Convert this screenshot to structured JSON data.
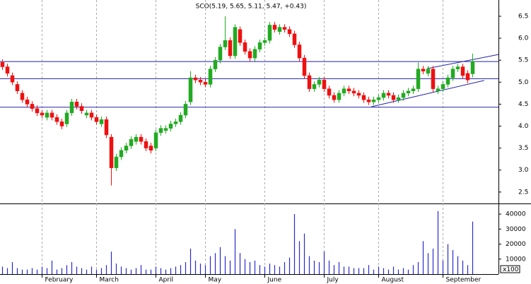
{
  "chart_data": [
    {
      "type": "candlestick",
      "title": "SCO(5.19, 5.65, 5.11, 5.47, +0.43)",
      "up_color": "#22aa22",
      "down_color": "#ee1111",
      "xlim": [
        -0.43,
        100.29
      ],
      "xticks": [
        {
          "value": 8,
          "label": "February"
        },
        {
          "value": 19,
          "label": "March"
        },
        {
          "value": 31,
          "label": "April"
        },
        {
          "value": 41,
          "label": "May"
        },
        {
          "value": 53,
          "label": "June"
        },
        {
          "value": 65,
          "label": "July"
        },
        {
          "value": 76,
          "label": "August"
        },
        {
          "value": 89,
          "label": "September"
        }
      ],
      "ylim": [
        2.24,
        6.87
      ],
      "yticks": [
        2.5,
        {
          "value": 3,
          "label": "3.0"
        },
        3.5,
        {
          "value": 4,
          "label": "4.0"
        },
        4.5,
        {
          "value": 5,
          "label": "5.0"
        },
        5.5,
        {
          "value": 6,
          "label": "6.0"
        },
        6.5
      ],
      "hlines": [
        5.47,
        5.08,
        4.43
      ],
      "line_color": "#2222aa",
      "trendlines": [
        {
          "x": [
            85.9,
            100.3
          ],
          "y": [
            5.31,
            5.63
          ]
        },
        {
          "x": [
            74.6,
            97.4
          ],
          "y": [
            4.44,
            5.04
          ]
        }
      ],
      "open": [
        5.45,
        5.35,
        5.15,
        4.95,
        4.75,
        4.6,
        4.5,
        4.4,
        4.3,
        4.2,
        4.3,
        4.2,
        4.1,
        4.05,
        4.3,
        4.55,
        4.45,
        4.25,
        4.3,
        4.2,
        4.05,
        4.15,
        3.75,
        3.05,
        3.3,
        3.45,
        3.55,
        3.65,
        3.75,
        3.65,
        3.55,
        3.5,
        3.85,
        3.9,
        3.95,
        4.05,
        4.1,
        4.25,
        4.55,
        5.1,
        5.05,
        5.0,
        4.95,
        5.3,
        5.5,
        5.8,
        5.95,
        5.6,
        6.2,
        5.9,
        5.7,
        5.55,
        5.75,
        5.9,
        5.95,
        6.3,
        6.15,
        6.25,
        6.2,
        6.1,
        5.85,
        5.55,
        5.15,
        4.85,
        4.95,
        5.05,
        4.85,
        4.7,
        4.6,
        4.75,
        4.85,
        4.8,
        4.75,
        4.7,
        4.6,
        4.55,
        4.6,
        4.65,
        4.75,
        4.7,
        4.6,
        4.65,
        4.75,
        4.8,
        4.85,
        5.3,
        5.2,
        5.3,
        4.8,
        4.85,
        4.95,
        5.1,
        5.3,
        5.35,
        5.2,
        5.19
      ],
      "high": [
        5.52,
        5.42,
        5.22,
        5.02,
        4.82,
        4.67,
        4.57,
        4.47,
        4.37,
        4.37,
        4.37,
        4.27,
        4.17,
        4.37,
        4.62,
        4.62,
        4.52,
        4.37,
        4.37,
        4.27,
        4.22,
        4.22,
        3.82,
        3.37,
        3.52,
        3.62,
        3.77,
        3.82,
        3.82,
        3.72,
        3.62,
        3.92,
        4.02,
        4.02,
        4.12,
        4.17,
        4.32,
        4.57,
        5.25,
        5.17,
        5.12,
        5.07,
        5.37,
        5.57,
        5.87,
        6.5,
        6.02,
        6.32,
        6.27,
        5.97,
        5.77,
        5.82,
        5.97,
        6.02,
        6.37,
        6.37,
        6.32,
        6.32,
        6.27,
        6.17,
        5.92,
        5.62,
        5.22,
        5.02,
        5.12,
        5.12,
        4.92,
        4.77,
        4.82,
        4.92,
        4.92,
        4.87,
        4.82,
        4.77,
        4.67,
        4.67,
        4.72,
        4.82,
        4.82,
        4.77,
        4.72,
        4.82,
        4.87,
        4.92,
        5.45,
        5.37,
        5.37,
        5.37,
        4.92,
        5.02,
        5.17,
        5.37,
        5.42,
        5.42,
        5.27,
        5.65
      ],
      "low": [
        5.28,
        5.13,
        4.93,
        4.73,
        4.53,
        4.43,
        4.33,
        4.23,
        4.18,
        4.13,
        4.13,
        4.03,
        3.93,
        3.98,
        4.23,
        4.38,
        4.28,
        4.18,
        4.13,
        4.03,
        3.98,
        3.73,
        2.65,
        2.98,
        3.23,
        3.38,
        3.48,
        3.58,
        3.58,
        3.43,
        3.38,
        3.43,
        3.78,
        3.83,
        3.88,
        3.98,
        4.03,
        4.18,
        4.48,
        4.98,
        4.93,
        4.88,
        4.88,
        5.23,
        5.43,
        5.73,
        5.53,
        5.53,
        5.83,
        5.63,
        5.48,
        5.48,
        5.68,
        5.83,
        5.88,
        6.13,
        6.08,
        6.13,
        6.03,
        5.78,
        5.48,
        5.08,
        4.78,
        4.78,
        4.88,
        4.78,
        4.63,
        4.53,
        4.53,
        4.68,
        4.73,
        4.68,
        4.63,
        4.53,
        4.48,
        4.48,
        4.53,
        4.58,
        4.63,
        4.53,
        4.53,
        4.58,
        4.68,
        4.73,
        4.78,
        5.18,
        5.13,
        4.78,
        4.73,
        4.78,
        4.88,
        5.03,
        5.23,
        5.08,
        4.98,
        5.11
      ],
      "close": [
        5.35,
        5.2,
        5.0,
        4.8,
        4.6,
        4.5,
        4.4,
        4.3,
        4.25,
        4.3,
        4.2,
        4.1,
        4.0,
        4.3,
        4.55,
        4.45,
        4.35,
        4.3,
        4.2,
        4.1,
        4.15,
        3.8,
        3.05,
        3.3,
        3.45,
        3.55,
        3.7,
        3.75,
        3.65,
        3.5,
        3.45,
        3.85,
        3.95,
        3.95,
        4.05,
        4.1,
        4.25,
        4.5,
        5.1,
        5.05,
        5.0,
        4.95,
        5.3,
        5.5,
        5.8,
        5.95,
        5.6,
        6.25,
        5.9,
        5.7,
        5.55,
        5.75,
        5.9,
        5.95,
        6.3,
        6.2,
        6.25,
        6.2,
        6.1,
        5.85,
        5.55,
        5.15,
        4.85,
        4.95,
        5.05,
        4.85,
        4.7,
        4.6,
        4.75,
        4.85,
        4.8,
        4.75,
        4.7,
        4.6,
        4.55,
        4.6,
        4.65,
        4.75,
        4.7,
        4.6,
        4.65,
        4.75,
        4.8,
        4.85,
        5.3,
        5.25,
        5.3,
        4.85,
        4.85,
        4.95,
        5.1,
        5.3,
        5.35,
        5.15,
        5.05,
        5.47
      ]
    },
    {
      "type": "bar",
      "color": "#2a2acc",
      "unit_label": "x100",
      "ylim": [
        0,
        47090
      ],
      "yticks": [
        10000,
        20000,
        30000,
        40000
      ],
      "values": [
        5000,
        4000,
        8000,
        4000,
        3000,
        3000,
        4000,
        3000,
        5000,
        4000,
        9000,
        3000,
        4000,
        6000,
        8000,
        5000,
        4000,
        3000,
        5000,
        3000,
        4000,
        6000,
        15000,
        7000,
        5000,
        4000,
        3000,
        4000,
        6000,
        3000,
        3000,
        5000,
        4000,
        3000,
        4000,
        5000,
        6000,
        8000,
        17000,
        9000,
        7000,
        6000,
        12000,
        14000,
        18000,
        12000,
        9000,
        30000,
        14000,
        10000,
        8000,
        9000,
        6000,
        5000,
        7000,
        6000,
        5000,
        8000,
        11000,
        40000,
        22000,
        27000,
        12000,
        9000,
        8000,
        15000,
        9000,
        6000,
        8000,
        5000,
        5000,
        4000,
        4000,
        4000,
        6000,
        3000,
        5000,
        4000,
        3000,
        5000,
        3000,
        4000,
        3000,
        6000,
        8000,
        22000,
        14000,
        17000,
        42000,
        9000,
        20000,
        16000,
        12000,
        9000,
        6000,
        35000
      ]
    }
  ]
}
